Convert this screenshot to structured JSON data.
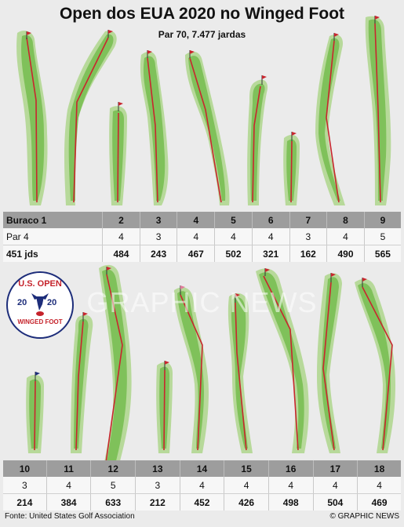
{
  "header": {
    "title": "Open dos EUA 2020 no Winged Foot",
    "subtitle": "Par 70, 7.477 jardas"
  },
  "front_nine": {
    "holes": [
      "Buraco 1",
      "2",
      "3",
      "4",
      "5",
      "6",
      "7",
      "8",
      "9"
    ],
    "pars": [
      "Par 4",
      "4",
      "3",
      "4",
      "4",
      "4",
      "3",
      "4",
      "5"
    ],
    "yards": [
      "451 jds",
      "484",
      "243",
      "467",
      "502",
      "321",
      "162",
      "490",
      "565"
    ]
  },
  "back_nine": {
    "holes": [
      "10",
      "11",
      "12",
      "13",
      "14",
      "15",
      "16",
      "17",
      "18"
    ],
    "pars": [
      "3",
      "4",
      "5",
      "3",
      "4",
      "4",
      "4",
      "4",
      "4"
    ],
    "yards": [
      "214",
      "384",
      "633",
      "212",
      "452",
      "426",
      "498",
      "504",
      "469"
    ]
  },
  "badge": {
    "top": "U.S. OPEN",
    "year_left": "20",
    "year_right": "20",
    "bottom": "WINGED FOOT"
  },
  "watermark": "GRAPHIC NEWS",
  "footer": {
    "source": "Fonte: United States Golf Association",
    "credit": "© GRAPHIC NEWS"
  },
  "colors": {
    "fairway": "#7fc15a",
    "rough": "#b7d99a",
    "route_line": "#c8262e",
    "flag": "#c8262e",
    "header_row": "#9d9d9d"
  }
}
